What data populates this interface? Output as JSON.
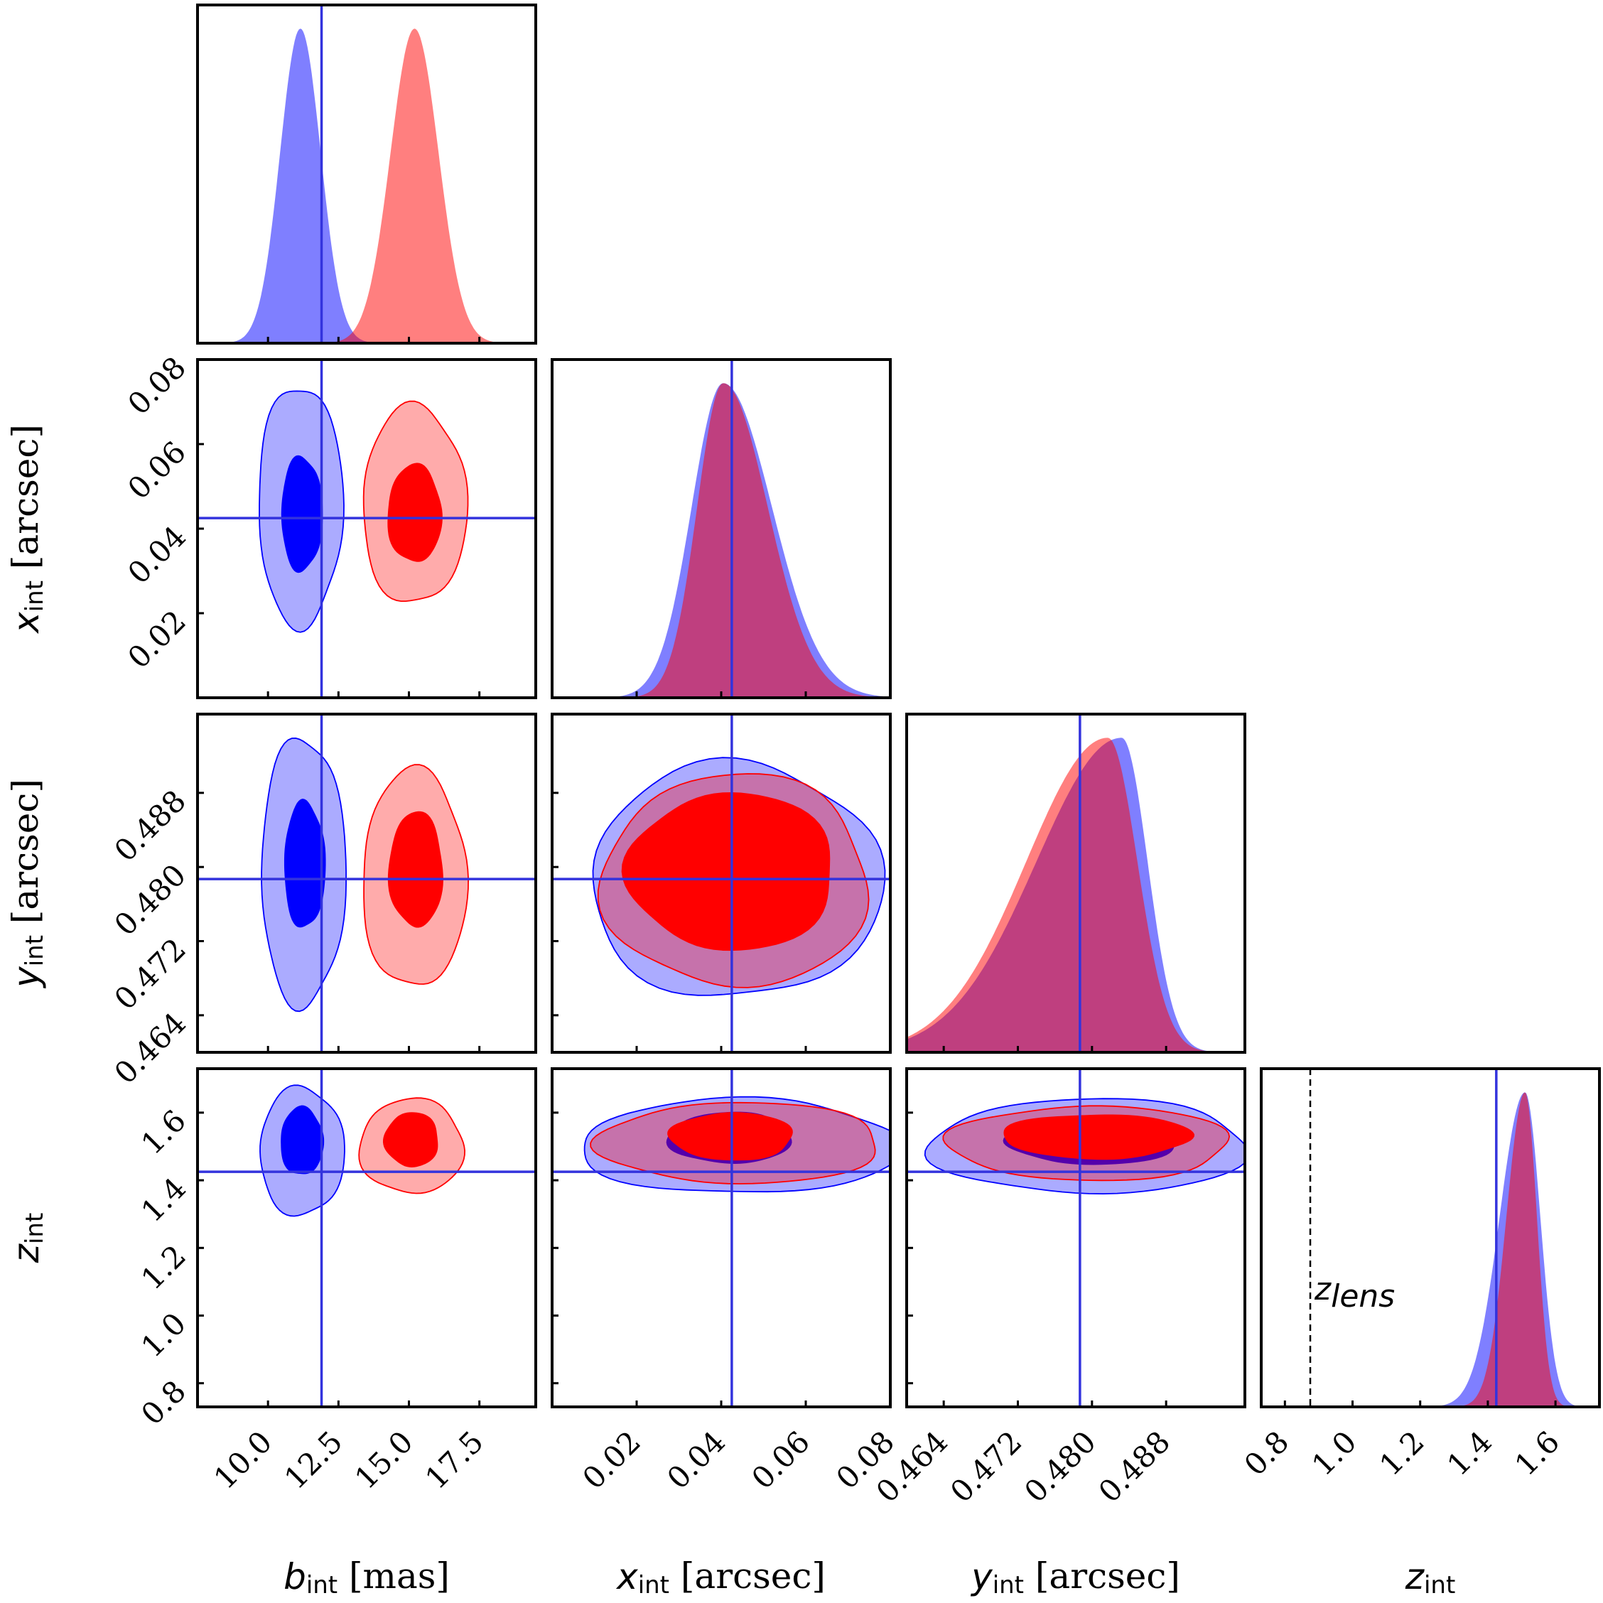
{
  "chart_data": {
    "type": "corner",
    "parameters": [
      {
        "key": "b",
        "sym": "b",
        "sub": "int",
        "unit": " [mas]",
        "range": [
          7.5,
          19.5
        ],
        "ticks": [
          10.0,
          12.5,
          15.0,
          17.5
        ],
        "tick_labels": [
          "10.0",
          "12.5",
          "15.0",
          "17.5"
        ],
        "truth": 11.9
      },
      {
        "key": "x",
        "sym": "x",
        "sub": "int",
        "unit": " [arcsec]",
        "range": [
          0.0,
          0.08
        ],
        "ticks": [
          0.02,
          0.04,
          0.06,
          0.08
        ],
        "tick_labels": [
          "0.02",
          "0.04",
          "0.06",
          "0.08"
        ],
        "truth": 0.0425
      },
      {
        "key": "y",
        "sym": "y",
        "sub": "int",
        "unit": " [arcsec]",
        "range": [
          0.46,
          0.4965
        ],
        "ticks": [
          0.464,
          0.472,
          0.48,
          0.488
        ],
        "tick_labels": [
          "0.464",
          "0.472",
          "0.480",
          "0.488"
        ],
        "truth": 0.4787
      },
      {
        "key": "z",
        "sym": "z",
        "sub": "int",
        "unit": "",
        "range": [
          0.73,
          1.73
        ],
        "ticks": [
          0.8,
          1.0,
          1.2,
          1.4,
          1.6
        ],
        "tick_labels": [
          "0.8",
          "1.0",
          "1.2",
          "1.4",
          "1.6"
        ],
        "truth": 1.425
      }
    ],
    "series": [
      {
        "color": "#0000ff",
        "b": {
          "mean": 11.15,
          "sd": 0.72
        },
        "x": {
          "mean": 0.0405,
          "sd_left": 0.0075,
          "sd_right": 0.0115,
          "peak": 0.0405
        },
        "y": {
          "mode": 0.4832,
          "sd_left": 0.0092,
          "sd_right": 0.0028
        },
        "z": {
          "mode": 1.51,
          "sd_left": 0.075,
          "sd_right": 0.045
        },
        "contours": {
          "b-x": {
            "inner": {
              "center": [
                11.2,
                0.0435
              ],
              "radii": [
                0.72,
                0.0135
              ]
            },
            "outer": {
              "center": [
                11.15,
                0.0455
              ],
              "radii": [
                1.5,
                0.0285
              ]
            }
          },
          "b-y": {
            "inner": {
              "center": [
                11.3,
                0.4802
              ],
              "radii": [
                0.72,
                0.0068
              ]
            },
            "outer": {
              "center": [
                11.25,
                0.4795
              ],
              "radii": [
                1.5,
                0.0145
              ]
            }
          },
          "x-y": {
            "inner": {
              "center": [
                0.0415,
                0.4805
              ],
              "radii": [
                0.0135,
                0.0065
              ]
            },
            "outer": {
              "center": [
                0.0435,
                0.4785
              ],
              "radii": [
                0.0345,
                0.0127
              ]
            }
          },
          "b-z": {
            "inner": {
              "center": [
                11.2,
                1.515
              ],
              "radii": [
                0.75,
                0.1
              ]
            },
            "outer": {
              "center": [
                11.2,
                1.485
              ],
              "radii": [
                1.5,
                0.19
              ]
            }
          },
          "x-z": {
            "inner": {
              "center": [
                0.042,
                1.525
              ],
              "radii": [
                0.0145,
                0.075
              ]
            },
            "outer": {
              "center": [
                0.0445,
                1.5
              ],
              "radii": [
                0.038,
                0.14
              ]
            }
          },
          "y-z": {
            "inner": {
              "center": [
                0.4802,
                1.517
              ],
              "radii": [
                0.0092,
                0.07
              ]
            },
            "outer": {
              "center": [
                0.4797,
                1.5
              ],
              "radii": [
                0.0172,
                0.14
              ]
            }
          }
        }
      },
      {
        "color": "#ff0000",
        "b": {
          "mean": 15.2,
          "sd": 0.85
        },
        "x": {
          "mean": 0.0405,
          "sd_left": 0.0062,
          "sd_right": 0.0105,
          "peak": 0.0405
        },
        "y": {
          "mode": 0.4817,
          "sd_left": 0.0088,
          "sd_right": 0.0032
        },
        "z": {
          "mode": 1.51,
          "sd_left": 0.055,
          "sd_right": 0.035
        },
        "contours": {
          "b-x": {
            "inner": {
              "center": [
                15.2,
                0.0435
              ],
              "radii": [
                0.95,
                0.0115
              ]
            },
            "outer": {
              "center": [
                15.2,
                0.0455
              ],
              "radii": [
                1.85,
                0.0235
              ]
            }
          },
          "b-y": {
            "inner": {
              "center": [
                15.25,
                0.4797
              ],
              "radii": [
                0.95,
                0.0062
              ]
            },
            "outer": {
              "center": [
                15.2,
                0.4787
              ],
              "radii": [
                1.85,
                0.0118
              ]
            }
          },
          "x-y": {
            "inner": {
              "center": [
                0.0425,
                0.4795
              ],
              "radii": [
                0.0245,
                0.0085
              ]
            },
            "outer": {
              "center": [
                0.0435,
                0.4785
              ],
              "radii": [
                0.0315,
                0.0115
              ]
            }
          },
          "b-z": {
            "inner": {
              "center": [
                15.1,
                1.52
              ],
              "radii": [
                0.95,
                0.08
              ]
            },
            "outer": {
              "center": [
                15.1,
                1.5
              ],
              "radii": [
                1.85,
                0.14
              ]
            }
          },
          "x-z": {
            "inner": {
              "center": [
                0.0425,
                1.53
              ],
              "radii": [
                0.0145,
                0.07
              ]
            },
            "outer": {
              "center": [
                0.0445,
                1.51
              ],
              "radii": [
                0.0335,
                0.12
              ]
            }
          },
          "y-z": {
            "inner": {
              "center": [
                0.4805,
                1.53
              ],
              "radii": [
                0.0102,
                0.065
              ]
            },
            "outer": {
              "center": [
                0.4797,
                1.51
              ],
              "radii": [
                0.0152,
                0.11
              ]
            }
          }
        }
      }
    ],
    "annotation": {
      "sym": "z",
      "sub": "lens",
      "value": 0.875
    }
  }
}
